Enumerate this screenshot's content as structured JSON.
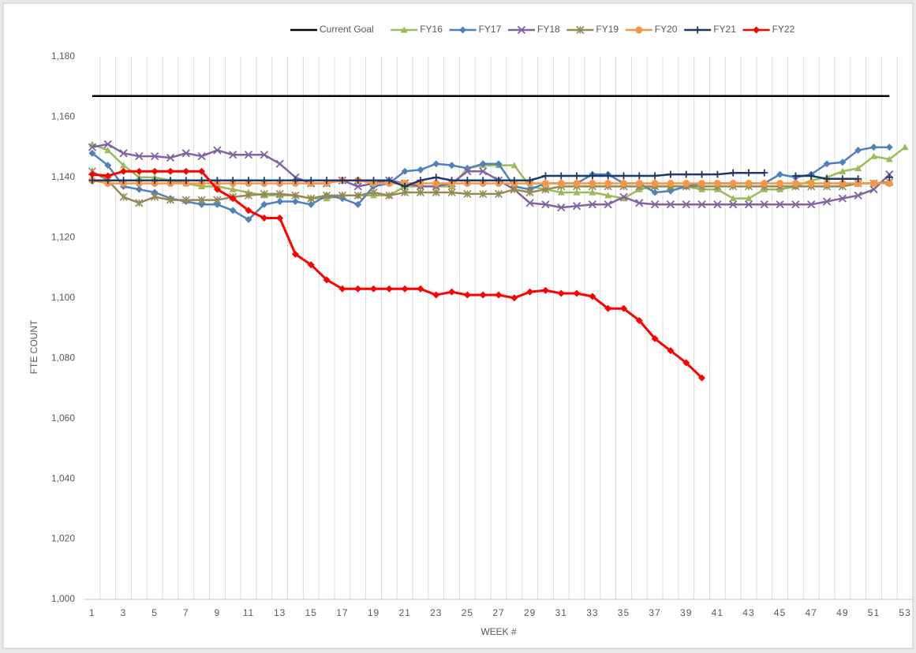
{
  "chart_data": {
    "type": "line",
    "categories": [
      1,
      null,
      3,
      null,
      5,
      null,
      7,
      null,
      9,
      null,
      11,
      null,
      13,
      null,
      15,
      null,
      17,
      null,
      19,
      null,
      21,
      null,
      23,
      null,
      25,
      null,
      27,
      null,
      29,
      null,
      31,
      null,
      33,
      null,
      35,
      null,
      37,
      null,
      39,
      null,
      41,
      null,
      43,
      null,
      45,
      null,
      47,
      null,
      49,
      null,
      51,
      null,
      53
    ],
    "xlabel": "WEEK #",
    "ylabel": "FTE COUNT",
    "ylim": [
      1000,
      1180
    ],
    "yticks": [
      {
        "value": 1000,
        "label": "1,000"
      },
      {
        "value": 1020,
        "label": "1,020"
      },
      {
        "value": 1040,
        "label": "1,040"
      },
      {
        "value": 1060,
        "label": "1,060"
      },
      {
        "value": 1080,
        "label": "1,080"
      },
      {
        "value": 1100,
        "label": "1,100"
      },
      {
        "value": 1120,
        "label": "1,120"
      },
      {
        "value": 1140,
        "label": "1,140"
      },
      {
        "value": 1160,
        "label": "1,160"
      },
      {
        "value": 1180,
        "label": "1,180"
      }
    ],
    "grid": true,
    "legend": "top",
    "series": [
      {
        "name": "Current Goal",
        "color": "#000000",
        "marker": "none",
        "values": [
          1167,
          1167,
          1167,
          1167,
          1167,
          1167,
          1167,
          1167,
          1167,
          1167,
          1167,
          1167,
          1167,
          1167,
          1167,
          1167,
          1167,
          1167,
          1167,
          1167,
          1167,
          1167,
          1167,
          1167,
          1167,
          1167,
          1167,
          1167,
          1167,
          1167,
          1167,
          1167,
          1167,
          1167,
          1167,
          1167,
          1167,
          1167,
          1167,
          1167,
          1167,
          1167,
          1167,
          1167,
          1167,
          1167,
          1167,
          1167,
          1167,
          1167,
          1167,
          1167,
          null
        ]
      },
      {
        "name": "FY16",
        "color": "#9bbb59",
        "marker": "triangle",
        "values": [
          1151,
          1149,
          1144,
          1140,
          1140,
          1139,
          1138,
          1137,
          1137,
          1136,
          1135,
          1134,
          1134,
          1134,
          1133,
          1133,
          1134,
          1134,
          1134,
          1134,
          1137,
          1137,
          1137,
          1137,
          1143,
          1144,
          1144,
          1144,
          1137,
          1136,
          1135,
          1135,
          1135,
          1134,
          1133,
          1136,
          1137,
          1137,
          1137,
          1136,
          1136,
          1133,
          1133,
          1136,
          1136,
          1137,
          1139,
          1140,
          1142,
          1143,
          1147,
          1146,
          1150
        ]
      },
      {
        "name": "FY17",
        "color": "#4f81bd",
        "marker": "diamond",
        "values": [
          1148,
          1144,
          1137,
          1136,
          1135,
          1133,
          1132,
          1131,
          1131,
          1129,
          1126,
          1131,
          1132,
          1132,
          1131,
          1134,
          1133,
          1131,
          1137,
          1138,
          1142,
          1142.5,
          1144.5,
          1144,
          1143,
          1144.5,
          1144.5,
          1137,
          1136,
          1138,
          1138,
          1138,
          1141,
          1141,
          1138,
          1138,
          1135,
          1135.5,
          1137,
          1138,
          1138,
          1138,
          1138,
          1138,
          1141,
          1140,
          1141,
          1144.5,
          1145,
          1149,
          1150,
          1150,
          null
        ]
      },
      {
        "name": "FY18",
        "color": "#8064a2",
        "marker": "x",
        "values": [
          1150,
          1151,
          1148,
          1147,
          1147,
          1146.5,
          1148,
          1147,
          1149,
          1147.5,
          1147.5,
          1147.5,
          1144.5,
          1140,
          1138,
          1138,
          1139,
          1137,
          1138,
          1139,
          1138,
          1137,
          1137,
          1138,
          1142,
          1142,
          1139,
          1136,
          1131.5,
          1131,
          1130,
          1130.5,
          1131,
          1131,
          1133.5,
          1131.5,
          1131,
          1131,
          1131,
          1131,
          1131,
          1131,
          1131,
          1131,
          1131,
          1131,
          1131,
          1132,
          1133,
          1134,
          1136,
          1141,
          null
        ]
      },
      {
        "name": "FY19",
        "color": "#948a54",
        "marker": "star",
        "values": [
          1142,
          1139,
          1133.5,
          1131.5,
          1133.5,
          1132.5,
          1132.5,
          1132.5,
          1132.5,
          1133.5,
          1134,
          1134.5,
          1134.5,
          1134,
          1133,
          1134,
          1134,
          1134,
          1135,
          1134,
          1135,
          1135,
          1135,
          1135,
          1134.5,
          1134.5,
          1134.5,
          1136,
          1135,
          1136,
          1137,
          1137,
          1137,
          1137,
          1137,
          1137,
          1137,
          1137,
          1137,
          1137,
          1137,
          1137,
          1137,
          1137,
          1137,
          1137,
          1137,
          1137,
          1137,
          1138,
          1138,
          1138.5,
          null
        ]
      },
      {
        "name": "FY20",
        "color": "#f79646",
        "marker": "circle",
        "values": [
          1139,
          1138,
          1138,
          1138,
          1138,
          1138,
          1138,
          1138,
          1138,
          1138,
          1138,
          1138,
          1138,
          1138,
          1138,
          1138,
          1139,
          1139,
          1138,
          1138,
          1138,
          1138,
          1138,
          1138,
          1138,
          1138,
          1138,
          1138,
          1138,
          1138,
          1138,
          1138,
          1138,
          1138,
          1138,
          1138,
          1138,
          1138,
          1138,
          1138,
          1138,
          1138,
          1138,
          1138,
          1138,
          1138,
          1138,
          1138,
          1138,
          1138,
          1138,
          1138,
          null
        ]
      },
      {
        "name": "FY21",
        "color": "#1f3864",
        "marker": "plus",
        "values": [
          1139,
          1139,
          1139,
          1139,
          1139,
          1139,
          1139,
          1139,
          1139,
          1139,
          1139,
          1139,
          1139,
          1139,
          1139,
          1139,
          1139,
          1139,
          1139,
          1139,
          1137,
          1139,
          1140,
          1139,
          1139,
          1139,
          1139,
          1139,
          1139,
          1140.5,
          1140.5,
          1140.5,
          1140.5,
          1140.5,
          1140.5,
          1140.5,
          1140.5,
          1141,
          1141,
          1141,
          1141,
          1141.5,
          1141.5,
          1141.5,
          null,
          1140.5,
          1140.5,
          1139.5,
          1139.5,
          1139.5,
          null,
          1140,
          null
        ]
      },
      {
        "name": "FY22",
        "color": "#ff0000",
        "marker": "diamond",
        "values": [
          1141,
          1140.5,
          1142,
          1142,
          1142,
          1142,
          1142,
          1142,
          1136,
          1133,
          1129,
          1126.5,
          1126.5,
          1114.5,
          1111,
          1106,
          1103,
          1103,
          1103,
          1103,
          1103,
          1103,
          1101,
          1102,
          1101,
          1101,
          1101,
          1100,
          1102,
          1102.5,
          1101.5,
          1101.5,
          1100.5,
          1096.5,
          1096.5,
          1092.5,
          1086.5,
          1082.5,
          1078.5,
          1073.5,
          null,
          null,
          null,
          null,
          null,
          null,
          null,
          null,
          null,
          null,
          null,
          null,
          null
        ]
      }
    ]
  }
}
